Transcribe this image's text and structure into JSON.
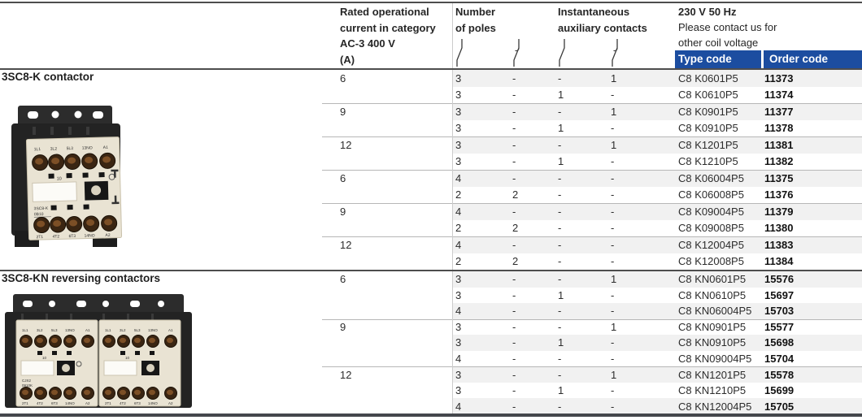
{
  "header": {
    "col_current": {
      "lines": [
        "Rated operational",
        "current in category",
        "AC-3 400 V",
        "(A)"
      ]
    },
    "col_poles": {
      "lines": [
        "Number",
        "of poles"
      ],
      "symbols": [
        "no-contact",
        "nc-contact"
      ]
    },
    "col_aux": {
      "lines": [
        "Instantaneous",
        "auxiliary contacts"
      ],
      "symbols": [
        "no-contact",
        "nc-contact"
      ]
    },
    "col_voltage": {
      "title": "230 V 50 Hz",
      "note_line1": "Please contact us for",
      "note_line2": "other coil voltage"
    },
    "type_code_label": "Type code",
    "order_code_label": "Order code"
  },
  "colors": {
    "accent_blue": "#1c4da0",
    "row_alt_gray": "#f1f1f1",
    "rule_dark": "#4d4d4d",
    "text_dark": "#262626"
  },
  "sections": [
    {
      "product": "3SC8-K contactor",
      "image": {
        "unit_label_line1": "3SC8-K",
        "unit_label_line2": "0B10",
        "rating_mark": "10",
        "terminals_top": [
          "1L1",
          "3L2",
          "5L3",
          "13NO",
          "A1"
        ],
        "terminals_bottom": [
          "2T1",
          "4T2",
          "6T3",
          "14NO",
          "A2"
        ]
      },
      "rows": [
        {
          "amp": "6",
          "p1": "3",
          "p2": "-",
          "a1": "-",
          "a2": "1",
          "type": "C8 K0601P5",
          "order": "11373"
        },
        {
          "amp": "",
          "p1": "3",
          "p2": "-",
          "a1": "1",
          "a2": "-",
          "type": "C8 K0610P5",
          "order": "11374"
        },
        {
          "amp": "9",
          "p1": "3",
          "p2": "-",
          "a1": "-",
          "a2": "1",
          "type": "C8 K0901P5",
          "order": "11377"
        },
        {
          "amp": "",
          "p1": "3",
          "p2": "-",
          "a1": "1",
          "a2": "-",
          "type": "C8 K0910P5",
          "order": "11378"
        },
        {
          "amp": "12",
          "p1": "3",
          "p2": "-",
          "a1": "-",
          "a2": "1",
          "type": "C8 K1201P5",
          "order": "11381"
        },
        {
          "amp": "",
          "p1": "3",
          "p2": "-",
          "a1": "1",
          "a2": "-",
          "type": "C8 K1210P5",
          "order": "11382"
        },
        {
          "amp": "6",
          "p1": "4",
          "p2": "-",
          "a1": "-",
          "a2": "-",
          "type": "C8 K06004P5",
          "order": "11375"
        },
        {
          "amp": "",
          "p1": "2",
          "p2": "2",
          "a1": "-",
          "a2": "-",
          "type": "C8 K06008P5",
          "order": "11376"
        },
        {
          "amp": "9",
          "p1": "4",
          "p2": "-",
          "a1": "-",
          "a2": "-",
          "type": "C8 K09004P5",
          "order": "11379"
        },
        {
          "amp": "",
          "p1": "2",
          "p2": "2",
          "a1": "-",
          "a2": "-",
          "type": "C8 K09008P5",
          "order": "11380"
        },
        {
          "amp": "12",
          "p1": "4",
          "p2": "-",
          "a1": "-",
          "a2": "-",
          "type": "C8 K12004P5",
          "order": "11383"
        },
        {
          "amp": "",
          "p1": "2",
          "p2": "2",
          "a1": "-",
          "a2": "-",
          "type": "C8 K12008P5",
          "order": "11384"
        }
      ]
    },
    {
      "product": "3SC8-KN reversing contactors",
      "image": {
        "unit_label_line1": "CJX2",
        "unit_label_line2": "0910K",
        "rating_mark": "10",
        "terminals_top": [
          "1L1",
          "3L2",
          "5L3",
          "13NO",
          "A1"
        ],
        "terminals_bottom": [
          "2T1",
          "4T2",
          "6T3",
          "14NO",
          "A2"
        ]
      },
      "rows": [
        {
          "amp": "6",
          "p1": "3",
          "p2": "-",
          "a1": "-",
          "a2": "1",
          "type": "C8 KN0601P5",
          "order": "15576"
        },
        {
          "amp": "",
          "p1": "3",
          "p2": "-",
          "a1": "1",
          "a2": "-",
          "type": "C8 KN0610P5",
          "order": "15697"
        },
        {
          "amp": "",
          "p1": "4",
          "p2": "-",
          "a1": "-",
          "a2": "-",
          "type": "C8 KN06004P5",
          "order": "15703"
        },
        {
          "amp": "9",
          "p1": "3",
          "p2": "-",
          "a1": "-",
          "a2": "1",
          "type": "C8 KN0901P5",
          "order": "15577"
        },
        {
          "amp": "",
          "p1": "3",
          "p2": "-",
          "a1": "1",
          "a2": "-",
          "type": "C8 KN0910P5",
          "order": "15698"
        },
        {
          "amp": "",
          "p1": "4",
          "p2": "-",
          "a1": "-",
          "a2": "-",
          "type": "C8 KN09004P5",
          "order": "15704"
        },
        {
          "amp": "12",
          "p1": "3",
          "p2": "-",
          "a1": "-",
          "a2": "1",
          "type": "C8 KN1201P5",
          "order": "15578"
        },
        {
          "amp": "",
          "p1": "3",
          "p2": "-",
          "a1": "1",
          "a2": "-",
          "type": "C8 KN1210P5",
          "order": "15699"
        },
        {
          "amp": "",
          "p1": "4",
          "p2": "-",
          "a1": "-",
          "a2": "-",
          "type": "C8 KN12004P5",
          "order": "15705"
        }
      ]
    }
  ]
}
